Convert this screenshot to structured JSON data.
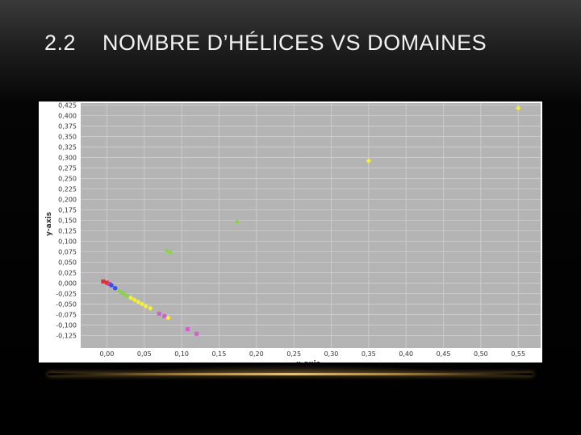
{
  "slide": {
    "number": "2.2",
    "title": "NOMBRE D’HÉLICES VS DOMAINES"
  },
  "chart_data": {
    "type": "scatter",
    "xlabel": "x-axis",
    "ylabel": "y-axis",
    "xlim": [
      -0.035,
      0.58
    ],
    "ylim": [
      -0.155,
      0.43
    ],
    "x_ticks": [
      "0,00",
      "0,05",
      "0,10",
      "0,15",
      "0,20",
      "0,25",
      "0,30",
      "0,35",
      "0,40",
      "0,45",
      "0,50",
      "0,55"
    ],
    "x_tick_values": [
      0,
      0.05,
      0.1,
      0.15,
      0.2,
      0.25,
      0.3,
      0.35,
      0.4,
      0.45,
      0.5,
      0.55
    ],
    "y_ticks": [
      "0,425",
      "0,400",
      "0,375",
      "0,350",
      "0,325",
      "0,300",
      "0,275",
      "0,250",
      "0,225",
      "0,200",
      "0,175",
      "0,150",
      "0,125",
      "0,100",
      "0,075",
      "0,050",
      "0,025",
      "0,000",
      "-0,025",
      "-0,050",
      "-0,075",
      "-0,100",
      "-0,125"
    ],
    "y_tick_values": [
      0.425,
      0.4,
      0.375,
      0.35,
      0.325,
      0.3,
      0.275,
      0.25,
      0.225,
      0.2,
      0.175,
      0.15,
      0.125,
      0.1,
      0.075,
      0.05,
      0.025,
      0,
      -0.025,
      -0.05,
      -0.075,
      -0.1,
      -0.125
    ],
    "grid": true,
    "background": "#b4b4b4",
    "grid_color": "#cfcfcf",
    "points": [
      {
        "x": -0.005,
        "y": 0.004,
        "color": "#e0302a",
        "shape": "square"
      },
      {
        "x": 0.0,
        "y": 0.001,
        "color": "#e0302a",
        "shape": "square"
      },
      {
        "x": 0.003,
        "y": -0.002,
        "color": "#c040a0",
        "shape": "square"
      },
      {
        "x": 0.006,
        "y": -0.005,
        "color": "#3a50e8",
        "shape": "circle"
      },
      {
        "x": 0.011,
        "y": -0.012,
        "color": "#3a50e8",
        "shape": "circle"
      },
      {
        "x": 0.016,
        "y": -0.017,
        "color": "#8ad24a",
        "shape": "triangle"
      },
      {
        "x": 0.02,
        "y": -0.022,
        "color": "#8ad24a",
        "shape": "triangle"
      },
      {
        "x": 0.024,
        "y": -0.026,
        "color": "#8ad24a",
        "shape": "triangle"
      },
      {
        "x": 0.028,
        "y": -0.03,
        "color": "#8ad24a",
        "shape": "triangle"
      },
      {
        "x": 0.032,
        "y": -0.035,
        "color": "#f4f03a",
        "shape": "diamond"
      },
      {
        "x": 0.037,
        "y": -0.04,
        "color": "#f4f03a",
        "shape": "diamond"
      },
      {
        "x": 0.042,
        "y": -0.045,
        "color": "#f4f03a",
        "shape": "diamond"
      },
      {
        "x": 0.047,
        "y": -0.05,
        "color": "#f4f03a",
        "shape": "diamond"
      },
      {
        "x": 0.052,
        "y": -0.055,
        "color": "#f4f03a",
        "shape": "diamond"
      },
      {
        "x": 0.058,
        "y": -0.06,
        "color": "#f4f03a",
        "shape": "diamond"
      },
      {
        "x": 0.07,
        "y": -0.073,
        "color": "#d060d0",
        "shape": "square"
      },
      {
        "x": 0.077,
        "y": -0.079,
        "color": "#d060d0",
        "shape": "square"
      },
      {
        "x": 0.082,
        "y": -0.083,
        "color": "#f4f03a",
        "shape": "diamond"
      },
      {
        "x": 0.108,
        "y": -0.11,
        "color": "#d060d0",
        "shape": "square"
      },
      {
        "x": 0.12,
        "y": -0.121,
        "color": "#d060d0",
        "shape": "square"
      },
      {
        "x": 0.08,
        "y": 0.079,
        "color": "#8ad24a",
        "shape": "triangle"
      },
      {
        "x": 0.085,
        "y": 0.075,
        "color": "#8ad24a",
        "shape": "triangle"
      },
      {
        "x": 0.174,
        "y": 0.148,
        "color": "#8ad24a",
        "shape": "triangle"
      },
      {
        "x": 0.35,
        "y": 0.292,
        "color": "#f4f03a",
        "shape": "diamond"
      },
      {
        "x": 0.55,
        "y": 0.418,
        "color": "#f4f03a",
        "shape": "diamond"
      }
    ]
  }
}
